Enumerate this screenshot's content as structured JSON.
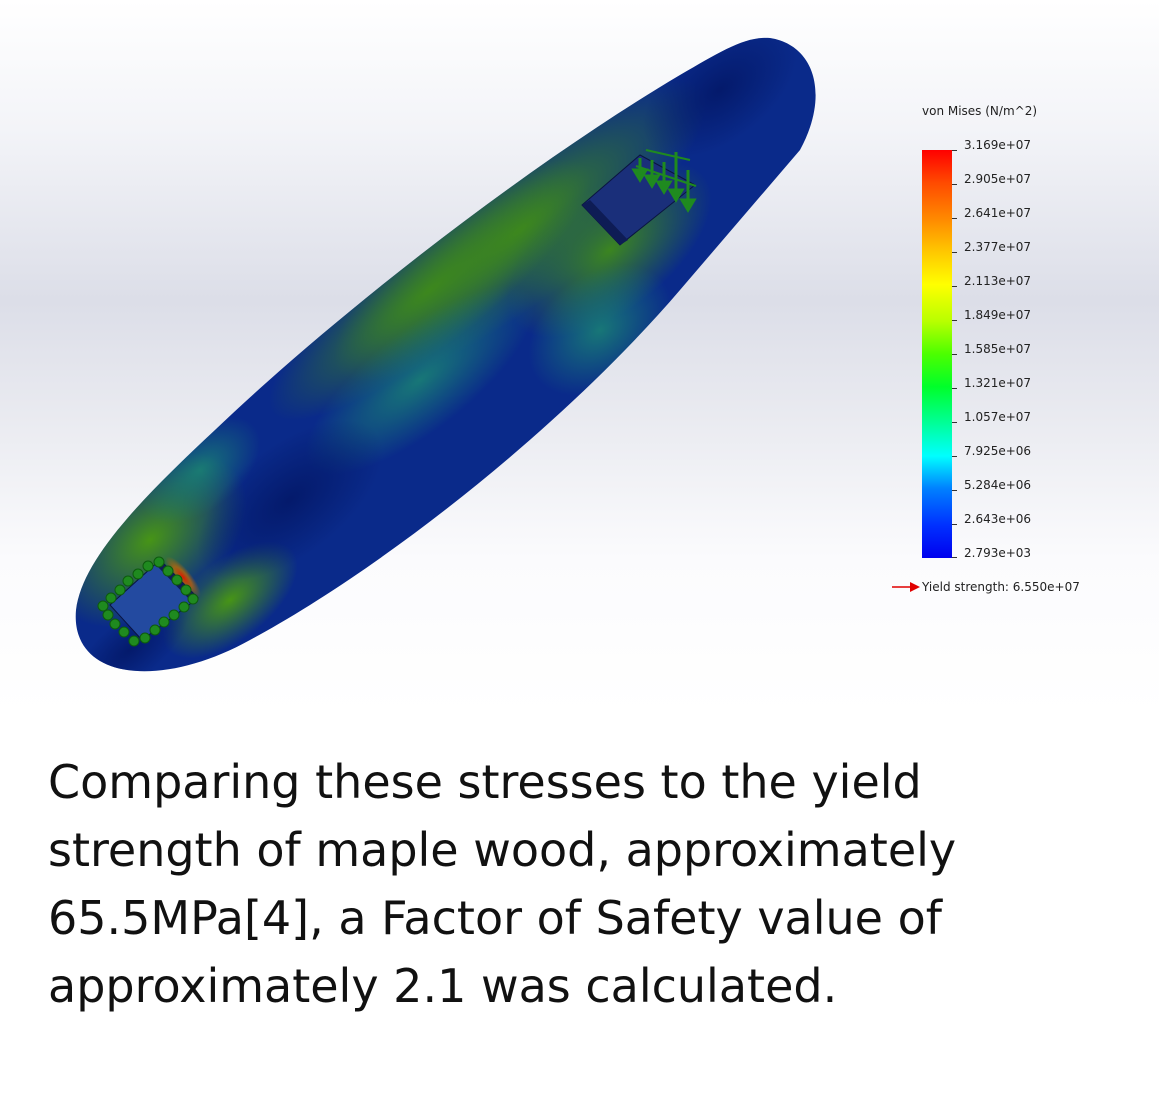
{
  "legend": {
    "title": "von Mises (N/m^2)",
    "ticks": [
      "3.169e+07",
      "2.905e+07",
      "2.641e+07",
      "2.377e+07",
      "2.113e+07",
      "1.849e+07",
      "1.585e+07",
      "1.321e+07",
      "1.057e+07",
      "7.925e+06",
      "5.284e+06",
      "2.643e+06",
      "2.793e+03"
    ],
    "yield_label": "Yield strength: 6.550e+07",
    "colors": {
      "max": "#ff0000",
      "mid": "#00ff2a",
      "min": "#0000ee",
      "yield_arrow": "#e00000"
    }
  },
  "model": {
    "part": "skateboard-deck",
    "fixture_icon": "fixed-geometry-icon",
    "load_icon": "force-arrow-icon",
    "fixture_color": "#1f8a1f"
  },
  "caption": {
    "text": "Comparing  these stresses  to  the yield\nstrength of maple wood, approximately\n65.5MPa[4], a Factor of Safety value of\napproximately 2.1 was calculated."
  }
}
